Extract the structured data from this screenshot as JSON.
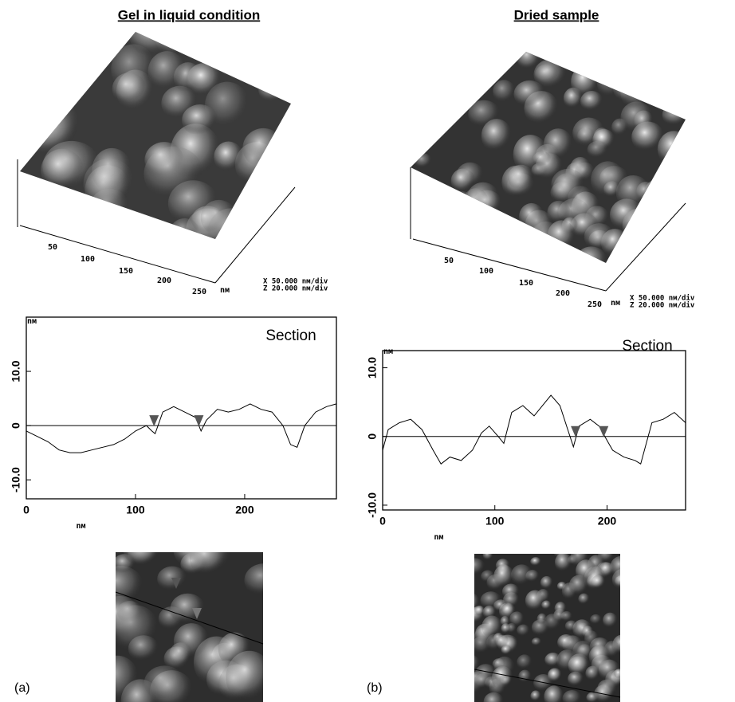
{
  "panels": [
    {
      "title": "Gel in liquid condition",
      "axis_ticks": [
        50,
        100,
        150,
        200,
        250
      ],
      "axis_unit": "nм",
      "scale_x": "X  50.000 nм/div",
      "scale_z": "Z  20.000 nм/div",
      "label": "(a)"
    },
    {
      "title": "Dried sample",
      "axis_ticks": [
        50,
        100,
        150,
        200,
        250
      ],
      "axis_unit": "nм",
      "scale_x": "X  50.000 nм/div",
      "scale_z": "Z  20.000 nм/div",
      "label": "(b)"
    }
  ],
  "chart_data": [
    {
      "type": "line",
      "title": "Section",
      "xlabel": "nм",
      "ylabel": "nм",
      "color": "#000000",
      "cursor_color": "#555555",
      "x": [
        0,
        10,
        20,
        30,
        40,
        50,
        60,
        70,
        80,
        90,
        100,
        110,
        115,
        118,
        125,
        135,
        145,
        155,
        160,
        165,
        175,
        185,
        195,
        205,
        215,
        225,
        235,
        242,
        248,
        255,
        265,
        275,
        284
      ],
      "values": [
        -1,
        -2,
        -3,
        -4.5,
        -5,
        -5,
        -4.5,
        -4,
        -3.5,
        -2.5,
        -1,
        0,
        -1,
        -1.5,
        2.5,
        3.5,
        2.5,
        1.5,
        -1,
        1,
        3,
        2.5,
        3,
        4,
        3,
        2.5,
        0,
        -3.5,
        -4,
        0,
        2.5,
        3.5,
        4
      ],
      "cursors": [
        117,
        158
      ],
      "xlim": [
        0,
        284
      ],
      "ylim": [
        -13.5,
        20
      ],
      "xticks": [
        0,
        100,
        200
      ],
      "yticks": [
        {
          "value": 10,
          "label": "10.0"
        },
        0,
        {
          "value": -10,
          "label": "-10.0"
        }
      ]
    },
    {
      "type": "line",
      "title": "Section",
      "xlabel": "nм",
      "ylabel": "nм",
      "color": "#000000",
      "cursor_color": "#555555",
      "x": [
        0,
        5,
        15,
        25,
        35,
        45,
        52,
        60,
        70,
        80,
        88,
        95,
        103,
        108,
        115,
        125,
        135,
        140,
        150,
        158,
        165,
        170,
        175,
        185,
        193,
        198,
        205,
        215,
        225,
        230,
        235,
        240,
        250,
        260,
        270
      ],
      "values": [
        -2,
        1,
        2,
        2.5,
        1,
        -2,
        -4,
        -3,
        -3.5,
        -2,
        0.5,
        1.5,
        0,
        -1,
        3.5,
        4.5,
        3,
        4,
        6,
        4.5,
        1,
        -1.5,
        1.5,
        2.5,
        1.5,
        0,
        -2,
        -3,
        -3.5,
        -4,
        -1,
        2,
        2.5,
        3.5,
        2
      ],
      "cursors": [
        172,
        197
      ],
      "xlim": [
        0,
        270
      ],
      "ylim": [
        -10.7,
        12.5
      ],
      "xticks": [
        0,
        100,
        200
      ],
      "yticks": [
        {
          "value": 10,
          "label": "10.0"
        },
        0,
        {
          "value": -10,
          "label": "-10.0"
        }
      ]
    }
  ]
}
